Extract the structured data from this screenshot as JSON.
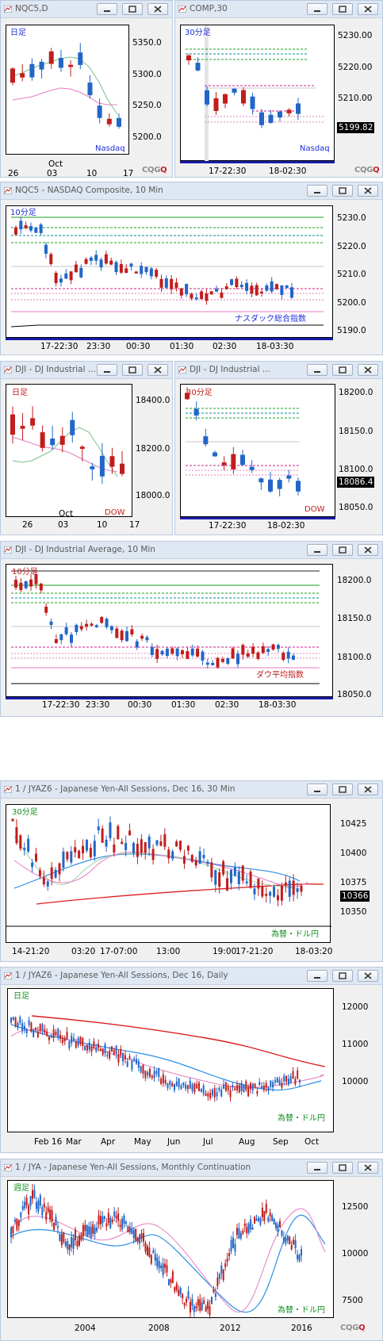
{
  "colors": {
    "up": "#2166c8",
    "down": "#c21d1d",
    "title_bg": "#dfe7f2",
    "avg_green": "#7fbf8a",
    "avg_pink": "#e37ec0",
    "avg_blue": "#2d8ee8",
    "avg_red": "#dd1e1e",
    "level_green": "#18a018",
    "level_teal": "#008c99",
    "level_magenta": "#d2218c"
  },
  "icons": [
    "chart-window-icon",
    "minimize-icon",
    "maximize-icon",
    "close-icon"
  ],
  "windows": {
    "w1": {
      "title": "NQC5,D",
      "label": "日足",
      "tag": "Nasdaq",
      "yticks": [
        "5350.0",
        "5300.0",
        "5250.0",
        "5200.0"
      ],
      "xticks": [
        "26",
        "03",
        "10",
        "17"
      ],
      "month": "Oct"
    },
    "w2": {
      "title": "COMP,30",
      "label": "30分足",
      "tag": "Nasdaq",
      "yticks": [
        "5230.00",
        "5220.00",
        "5210.00"
      ],
      "price": "5199.82",
      "xticks": [
        "17-22:30",
        "18-02:30"
      ]
    },
    "w3": {
      "title": "NQC5 - NASDAQ Composite, 10 Min",
      "label": "10分足",
      "tag": "ナスダック総合指数",
      "yticks": [
        "5230.0",
        "5220.0",
        "5210.0",
        "5200.0",
        "5190.0"
      ],
      "xticks": [
        "17-22:30",
        "23:30",
        "00:30",
        "01:30",
        "02:30",
        "18-03:30"
      ]
    },
    "w4": {
      "title": "DJI - DJ Industrial ...",
      "label": "日足",
      "tag": "DOW",
      "yticks": [
        "18400.0",
        "18200.0",
        "18000.0"
      ],
      "xticks": [
        "26",
        "03",
        "10",
        "17"
      ],
      "month": "Oct"
    },
    "w5": {
      "title": "DJI - DJ Industrial ...",
      "label": "30分足",
      "tag": "DOW",
      "yticks": [
        "18200.0",
        "18150.0",
        "18100.0",
        "18050.0"
      ],
      "price": "18086.4",
      "xticks": [
        "17-22:30",
        "18-02:30"
      ]
    },
    "w6": {
      "title": "DJI - DJ Industrial Average, 10 Min",
      "label": "10分足",
      "tag": "ダウ平均指数",
      "yticks": [
        "18200.0",
        "18150.0",
        "18100.0",
        "18050.0"
      ],
      "xticks": [
        "17-22:30",
        "23:30",
        "00:30",
        "01:30",
        "02:30",
        "18-03:30"
      ]
    },
    "w7": {
      "title": "1 / JYAZ6 - Japanese Yen-All Sessions, Dec 16, 30 Min",
      "label": "30分足",
      "tag": "為替・ドル円",
      "yticks": [
        "10425",
        "10400",
        "10375",
        "10350"
      ],
      "price": "10366",
      "xticks": [
        "14-21:20",
        "03:20",
        "17-07:00",
        "13:00",
        "19:00",
        "17-21:20",
        "18-03:20"
      ]
    },
    "w8": {
      "title": "1 / JYAZ6 - Japanese Yen-All Sessions, Dec 16, Daily",
      "label": "日足",
      "tag": "為替・ドル円",
      "yticks": [
        "12000",
        "11000",
        "10000"
      ],
      "xticks": [
        "Feb 16",
        "Mar",
        "Apr",
        "May",
        "Jun",
        "Jul",
        "Aug",
        "Sep",
        "Oct"
      ]
    },
    "w9": {
      "title": "1 / JYA - Japanese Yen-All Sessions, Monthly Continuation",
      "label": "週足",
      "tag": "為替・ドル円",
      "yticks": [
        "12500",
        "10000",
        "7500"
      ],
      "xticks": [
        "2004",
        "2008",
        "2012",
        "2016"
      ]
    }
  },
  "brand": {
    "left": "CQG",
    "right": "Q"
  }
}
